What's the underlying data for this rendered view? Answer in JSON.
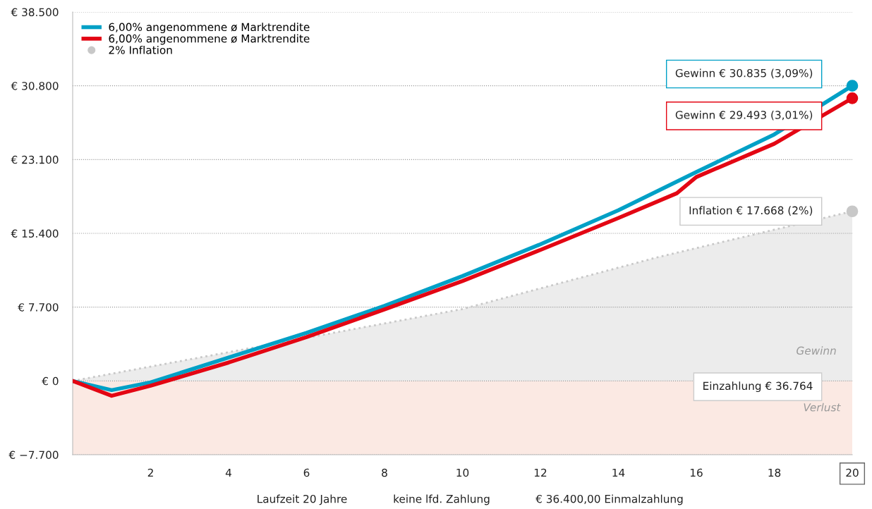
{
  "chart_data": {
    "type": "line",
    "series": [
      {
        "name": "6,00% angenommene ø Marktrendite",
        "color": "#00a0c6",
        "x": [
          0,
          1,
          2,
          4,
          6,
          8,
          10,
          12,
          14,
          16,
          18,
          20
        ],
        "values": [
          0,
          -960,
          -150,
          2440,
          5020,
          7830,
          10940,
          14260,
          17810,
          21800,
          25720,
          30800
        ]
      },
      {
        "name": "6,00% angenommene ø Marktrendite",
        "color": "#e30613",
        "x": [
          0,
          1,
          2,
          4,
          6,
          8,
          10,
          12,
          14,
          15.5,
          16,
          18,
          20
        ],
        "values": [
          0,
          -1550,
          -500,
          1920,
          4580,
          7460,
          10420,
          13670,
          17000,
          19580,
          21280,
          24750,
          29500
        ]
      },
      {
        "name": "2% Inflation",
        "type": "area",
        "color": "#c8c8c8",
        "line_style": "dotted",
        "x": [
          0,
          5,
          10,
          15,
          20
        ],
        "values": [
          0,
          3750,
          7500,
          12900,
          17700
        ]
      }
    ],
    "xlim": [
      0,
      20
    ],
    "xticks": [
      2,
      4,
      6,
      8,
      10,
      12,
      14,
      16,
      18,
      20
    ],
    "ylim": [
      -7700,
      38500
    ],
    "yticks": [
      {
        "value": -7700,
        "label": "€ −7.700"
      },
      {
        "value": 0,
        "label": "€ 0"
      },
      {
        "value": 7700,
        "label": "€ 7.700"
      },
      {
        "value": 15400,
        "label": "€ 15.400"
      },
      {
        "value": 23100,
        "label": "€ 23.100"
      },
      {
        "value": 30800,
        "label": "€ 30.800"
      },
      {
        "value": 38500,
        "label": "€ 38.500"
      }
    ],
    "grid": "y",
    "legend": "top left",
    "bands": [
      {
        "axis": "y",
        "from": -7700,
        "to": 0,
        "label": "Verlust",
        "color": "#fbe9e3"
      }
    ],
    "annotations": [
      "Gewinn € 30.835 (3,09%)",
      "Gewinn € 29.493 (3,01%)",
      "Inflation € 17.668 (2%)",
      "Einzahlung € 36.764",
      "Gewinn",
      "Laufzeit 20 Jahre",
      "keine lfd. Zahlung",
      "€ 36.400,00 Einmalzahlung"
    ]
  }
}
